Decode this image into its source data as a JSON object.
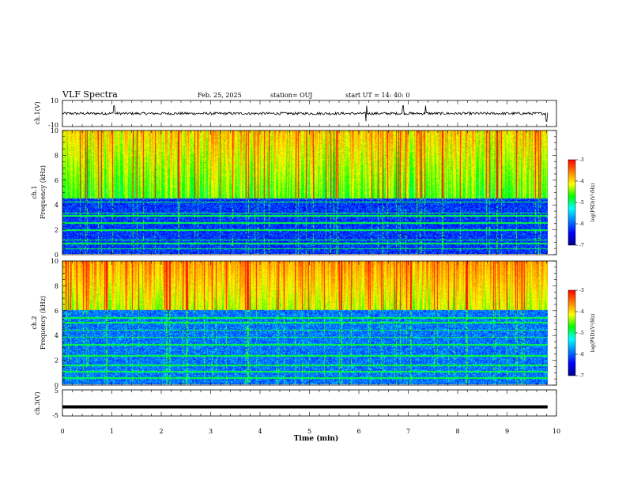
{
  "header": {
    "title": "VLF Spectra",
    "date": "Feb. 25, 2025",
    "station": "station= OUJ",
    "start": "start  UT  =   14: 40: 0"
  },
  "colors": {
    "colormap": [
      "#ffffff",
      "#00008b",
      "#0000ff",
      "#0080ff",
      "#00ffff",
      "#00ff00",
      "#ffff00",
      "#ff8000",
      "#ff0000"
    ],
    "waveform": "#000000",
    "axes": "#000000"
  },
  "chart_data": [
    {
      "type": "line",
      "name": "ch1-waveform",
      "ylabel": "ch.1(V)",
      "ylim": [
        -10,
        10
      ],
      "yticks": [
        "10",
        "-10"
      ],
      "xlim": [
        0,
        10
      ],
      "description_values": {
        "baseline": 0,
        "noise_amplitude": 1,
        "spikes_at_min": [
          1.05,
          6.15,
          6.9,
          7.35,
          9.8
        ]
      }
    },
    {
      "type": "heatmap",
      "name": "ch1-spectrogram",
      "ylabel_top": "ch.1",
      "ylabel": "Frequency (kHz)",
      "ylim": [
        0,
        10
      ],
      "yticks": [
        "0",
        "2",
        "4",
        "6",
        "8",
        "10"
      ],
      "xlim": [
        0,
        9.8
      ],
      "colorbar": {
        "label": "log(PSD)(V²/Hz)",
        "range": [
          -7,
          -3
        ],
        "ticks": [
          "-3",
          "-4",
          "-5",
          "-6",
          "-7"
        ]
      },
      "noise_floor_below_kHz": 4.5,
      "background_level": -6.2,
      "burst_level_range": [
        -5.2,
        -3.3
      ],
      "hum_line_kHz": [
        0.4,
        0.8,
        1.1,
        1.9,
        2.5,
        3.05,
        3.3,
        4.2,
        4.8
      ]
    },
    {
      "type": "heatmap",
      "name": "ch2-spectrogram",
      "ylabel_top": "ch.2",
      "ylabel": "Frequency (kHz)",
      "ylim": [
        0,
        10
      ],
      "yticks": [
        "0",
        "2",
        "4",
        "6",
        "8",
        "10"
      ],
      "xlim": [
        0,
        9.8
      ],
      "colorbar": {
        "label": "log(PSD)(V²/Hz)",
        "range": [
          -7,
          -3
        ],
        "ticks": [
          "-3",
          "-4",
          "-5",
          "-6",
          "-7"
        ]
      },
      "noise_floor_below_kHz": 6.0,
      "background_level": -5.9,
      "burst_level_range": [
        -4.8,
        -3.2
      ],
      "hum_line_kHz": [
        0.5,
        1.0,
        1.5,
        2.3,
        3.2,
        3.8,
        4.4,
        5.0,
        5.4
      ]
    },
    {
      "type": "line",
      "name": "ch3-waveform",
      "ylabel": "ch.3(V)",
      "ylim": [
        -5,
        5
      ],
      "yticks": [
        "5",
        "0",
        "-5"
      ],
      "xlim": [
        0,
        10
      ],
      "description_values": {
        "constant_level": -1.5
      }
    }
  ],
  "xaxis": {
    "label": "Time (min)",
    "ticks": [
      "0",
      "1",
      "2",
      "3",
      "4",
      "5",
      "6",
      "7",
      "8",
      "9",
      "10"
    ],
    "range": [
      0,
      10
    ]
  }
}
